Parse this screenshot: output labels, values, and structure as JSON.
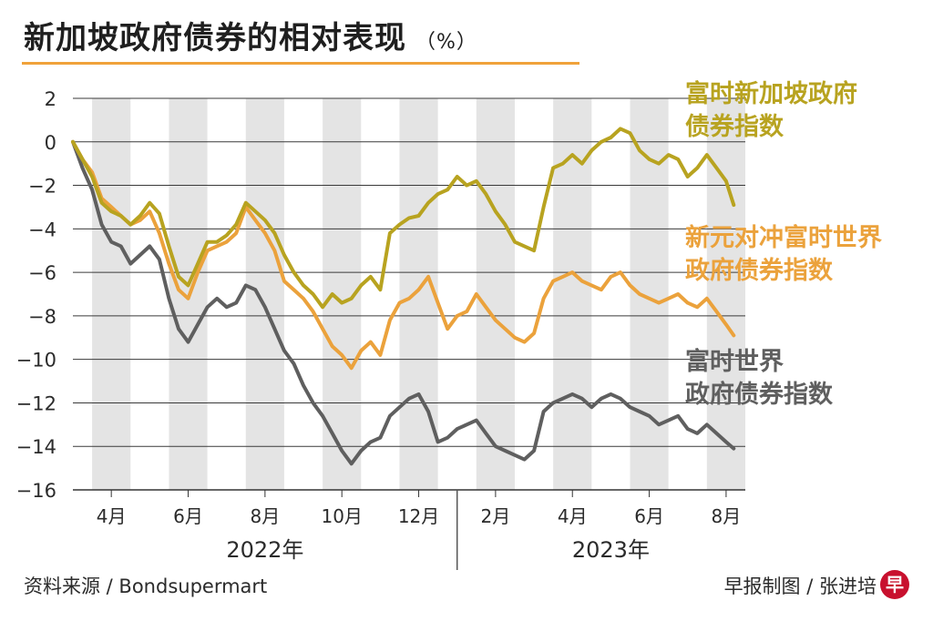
{
  "header": {
    "title": "新加坡政府债券的相对表现",
    "unit": "（%）"
  },
  "chart_data": {
    "type": "line",
    "title": "新加坡政府债券的相对表现",
    "ylabel": "%",
    "ylim": [
      -16,
      2
    ],
    "yticks": [
      "2",
      "0",
      "−2",
      "−4",
      "−6",
      "−8",
      "−10",
      "−12",
      "−14",
      "−16"
    ],
    "ytick_values": [
      2,
      0,
      -2,
      -4,
      -6,
      -8,
      -10,
      -12,
      -14,
      -16
    ],
    "xlim": [
      0,
      17.5
    ],
    "month_labels": [
      "4月",
      "6月",
      "8月",
      "10月",
      "12月",
      "2月",
      "4月",
      "6月",
      "8月"
    ],
    "month_positions": [
      1,
      3,
      5,
      7,
      9,
      11,
      13,
      15,
      17
    ],
    "shaded_bands": [
      [
        0.5,
        1.5
      ],
      [
        2.5,
        3.5
      ],
      [
        4.5,
        5.5
      ],
      [
        6.5,
        7.5
      ],
      [
        8.5,
        9.5
      ],
      [
        10.5,
        11.5
      ],
      [
        12.5,
        13.5
      ],
      [
        14.5,
        15.5
      ],
      [
        16.5,
        17.5
      ]
    ],
    "years": [
      {
        "label": "2022年",
        "center": 5
      },
      {
        "label": "2023年",
        "center": 14
      }
    ],
    "year_divider": 10,
    "series": [
      {
        "name": "富时新加坡政府债券指数",
        "color": "#b8a320",
        "x": [
          0,
          0.25,
          0.5,
          0.75,
          1,
          1.25,
          1.5,
          1.75,
          2,
          2.25,
          2.5,
          2.75,
          3,
          3.25,
          3.5,
          3.75,
          4,
          4.25,
          4.5,
          4.75,
          5,
          5.25,
          5.5,
          5.75,
          6,
          6.25,
          6.5,
          6.75,
          7,
          7.25,
          7.5,
          7.75,
          8,
          8.25,
          8.5,
          8.75,
          9,
          9.25,
          9.5,
          9.75,
          10,
          10.25,
          10.5,
          10.75,
          11,
          11.25,
          11.5,
          11.75,
          12,
          12.25,
          12.5,
          12.75,
          13,
          13.25,
          13.5,
          13.75,
          14,
          14.25,
          14.5,
          14.75,
          15,
          15.25,
          15.5,
          15.75,
          16,
          16.25,
          16.5,
          16.75,
          17,
          17.2
        ],
        "values": [
          0,
          -0.8,
          -1.6,
          -2.8,
          -3.2,
          -3.4,
          -3.8,
          -3.4,
          -2.8,
          -3.3,
          -4.8,
          -6.2,
          -6.6,
          -5.6,
          -4.6,
          -4.6,
          -4.3,
          -3.8,
          -2.8,
          -3.2,
          -3.6,
          -4.2,
          -5.2,
          -6.0,
          -6.6,
          -7.0,
          -7.6,
          -7.0,
          -7.4,
          -7.2,
          -6.6,
          -6.2,
          -6.8,
          -4.2,
          -3.8,
          -3.5,
          -3.4,
          -2.8,
          -2.4,
          -2.2,
          -1.6,
          -2.0,
          -1.8,
          -2.4,
          -3.2,
          -3.8,
          -4.6,
          -4.8,
          -5.0,
          -3.0,
          -1.2,
          -1.0,
          -0.6,
          -1.0,
          -0.4,
          0.0,
          0.2,
          0.6,
          0.4,
          -0.4,
          -0.8,
          -1.0,
          -0.6,
          -0.8,
          -1.6,
          -1.2,
          -0.6,
          -1.2,
          -1.8,
          -2.9
        ]
      },
      {
        "name": "新元对冲富时世界政府债券指数",
        "color": "#eba23c",
        "x": [
          0,
          0.25,
          0.5,
          0.75,
          1,
          1.25,
          1.5,
          1.75,
          2,
          2.25,
          2.5,
          2.75,
          3,
          3.25,
          3.5,
          3.75,
          4,
          4.25,
          4.5,
          4.75,
          5,
          5.25,
          5.5,
          5.75,
          6,
          6.25,
          6.5,
          6.75,
          7,
          7.25,
          7.5,
          7.75,
          8,
          8.25,
          8.5,
          8.75,
          9,
          9.25,
          9.5,
          9.75,
          10,
          10.25,
          10.5,
          10.75,
          11,
          11.25,
          11.5,
          11.75,
          12,
          12.25,
          12.5,
          12.75,
          13,
          13.25,
          13.5,
          13.75,
          14,
          14.25,
          14.5,
          14.75,
          15,
          15.25,
          15.5,
          15.75,
          16,
          16.25,
          16.5,
          16.75,
          17,
          17.2
        ],
        "values": [
          0,
          -0.8,
          -1.4,
          -2.6,
          -3.0,
          -3.4,
          -3.8,
          -3.6,
          -3.2,
          -4.2,
          -5.6,
          -6.8,
          -7.2,
          -6.0,
          -5.0,
          -4.8,
          -4.6,
          -4.2,
          -3.0,
          -3.6,
          -4.2,
          -5.0,
          -6.4,
          -6.8,
          -7.2,
          -7.8,
          -8.6,
          -9.4,
          -9.8,
          -10.4,
          -9.6,
          -9.2,
          -9.8,
          -8.2,
          -7.4,
          -7.2,
          -6.8,
          -6.2,
          -7.4,
          -8.6,
          -8.0,
          -7.8,
          -7.0,
          -7.6,
          -8.2,
          -8.6,
          -9.0,
          -9.2,
          -8.8,
          -7.2,
          -6.4,
          -6.2,
          -6.0,
          -6.4,
          -6.6,
          -6.8,
          -6.2,
          -6.0,
          -6.6,
          -7.0,
          -7.2,
          -7.4,
          -7.2,
          -7.0,
          -7.4,
          -7.6,
          -7.2,
          -7.8,
          -8.4,
          -8.9
        ]
      },
      {
        "name": "富时世界政府债券指数",
        "color": "#5f5f5f",
        "x": [
          0,
          0.25,
          0.5,
          0.75,
          1,
          1.25,
          1.5,
          1.75,
          2,
          2.25,
          2.5,
          2.75,
          3,
          3.25,
          3.5,
          3.75,
          4,
          4.25,
          4.5,
          4.75,
          5,
          5.25,
          5.5,
          5.75,
          6,
          6.25,
          6.5,
          6.75,
          7,
          7.25,
          7.5,
          7.75,
          8,
          8.25,
          8.5,
          8.75,
          9,
          9.25,
          9.5,
          9.75,
          10,
          10.25,
          10.5,
          10.75,
          11,
          11.25,
          11.5,
          11.75,
          12,
          12.25,
          12.5,
          12.75,
          13,
          13.25,
          13.5,
          13.75,
          14,
          14.25,
          14.5,
          14.75,
          15,
          15.25,
          15.5,
          15.75,
          16,
          16.25,
          16.5,
          16.75,
          17,
          17.2
        ],
        "values": [
          0,
          -1.2,
          -2.2,
          -3.8,
          -4.6,
          -4.8,
          -5.6,
          -5.2,
          -4.8,
          -5.4,
          -7.2,
          -8.6,
          -9.2,
          -8.4,
          -7.6,
          -7.2,
          -7.6,
          -7.4,
          -6.6,
          -6.8,
          -7.6,
          -8.6,
          -9.6,
          -10.2,
          -11.2,
          -12.0,
          -12.6,
          -13.4,
          -14.2,
          -14.8,
          -14.2,
          -13.8,
          -13.6,
          -12.6,
          -12.2,
          -11.8,
          -11.6,
          -12.4,
          -13.8,
          -13.6,
          -13.2,
          -13.0,
          -12.8,
          -13.4,
          -14.0,
          -14.2,
          -14.4,
          -14.6,
          -14.2,
          -12.4,
          -12.0,
          -11.8,
          -11.6,
          -11.8,
          -12.2,
          -11.8,
          -11.6,
          -11.8,
          -12.2,
          -12.4,
          -12.6,
          -13.0,
          -12.8,
          -12.6,
          -13.2,
          -13.4,
          -13.0,
          -13.4,
          -13.8,
          -14.1
        ]
      }
    ]
  },
  "legend": {
    "sg": [
      "富时新加坡政府",
      "债券指数"
    ],
    "hedged": [
      "新元对冲富时世界",
      "政府债券指数"
    ],
    "world": [
      "富时世界",
      "政府债券指数"
    ]
  },
  "footer": {
    "source": "资料来源 / Bondsupermart",
    "credit": "早报制图 / 张进培",
    "logo": "早"
  }
}
